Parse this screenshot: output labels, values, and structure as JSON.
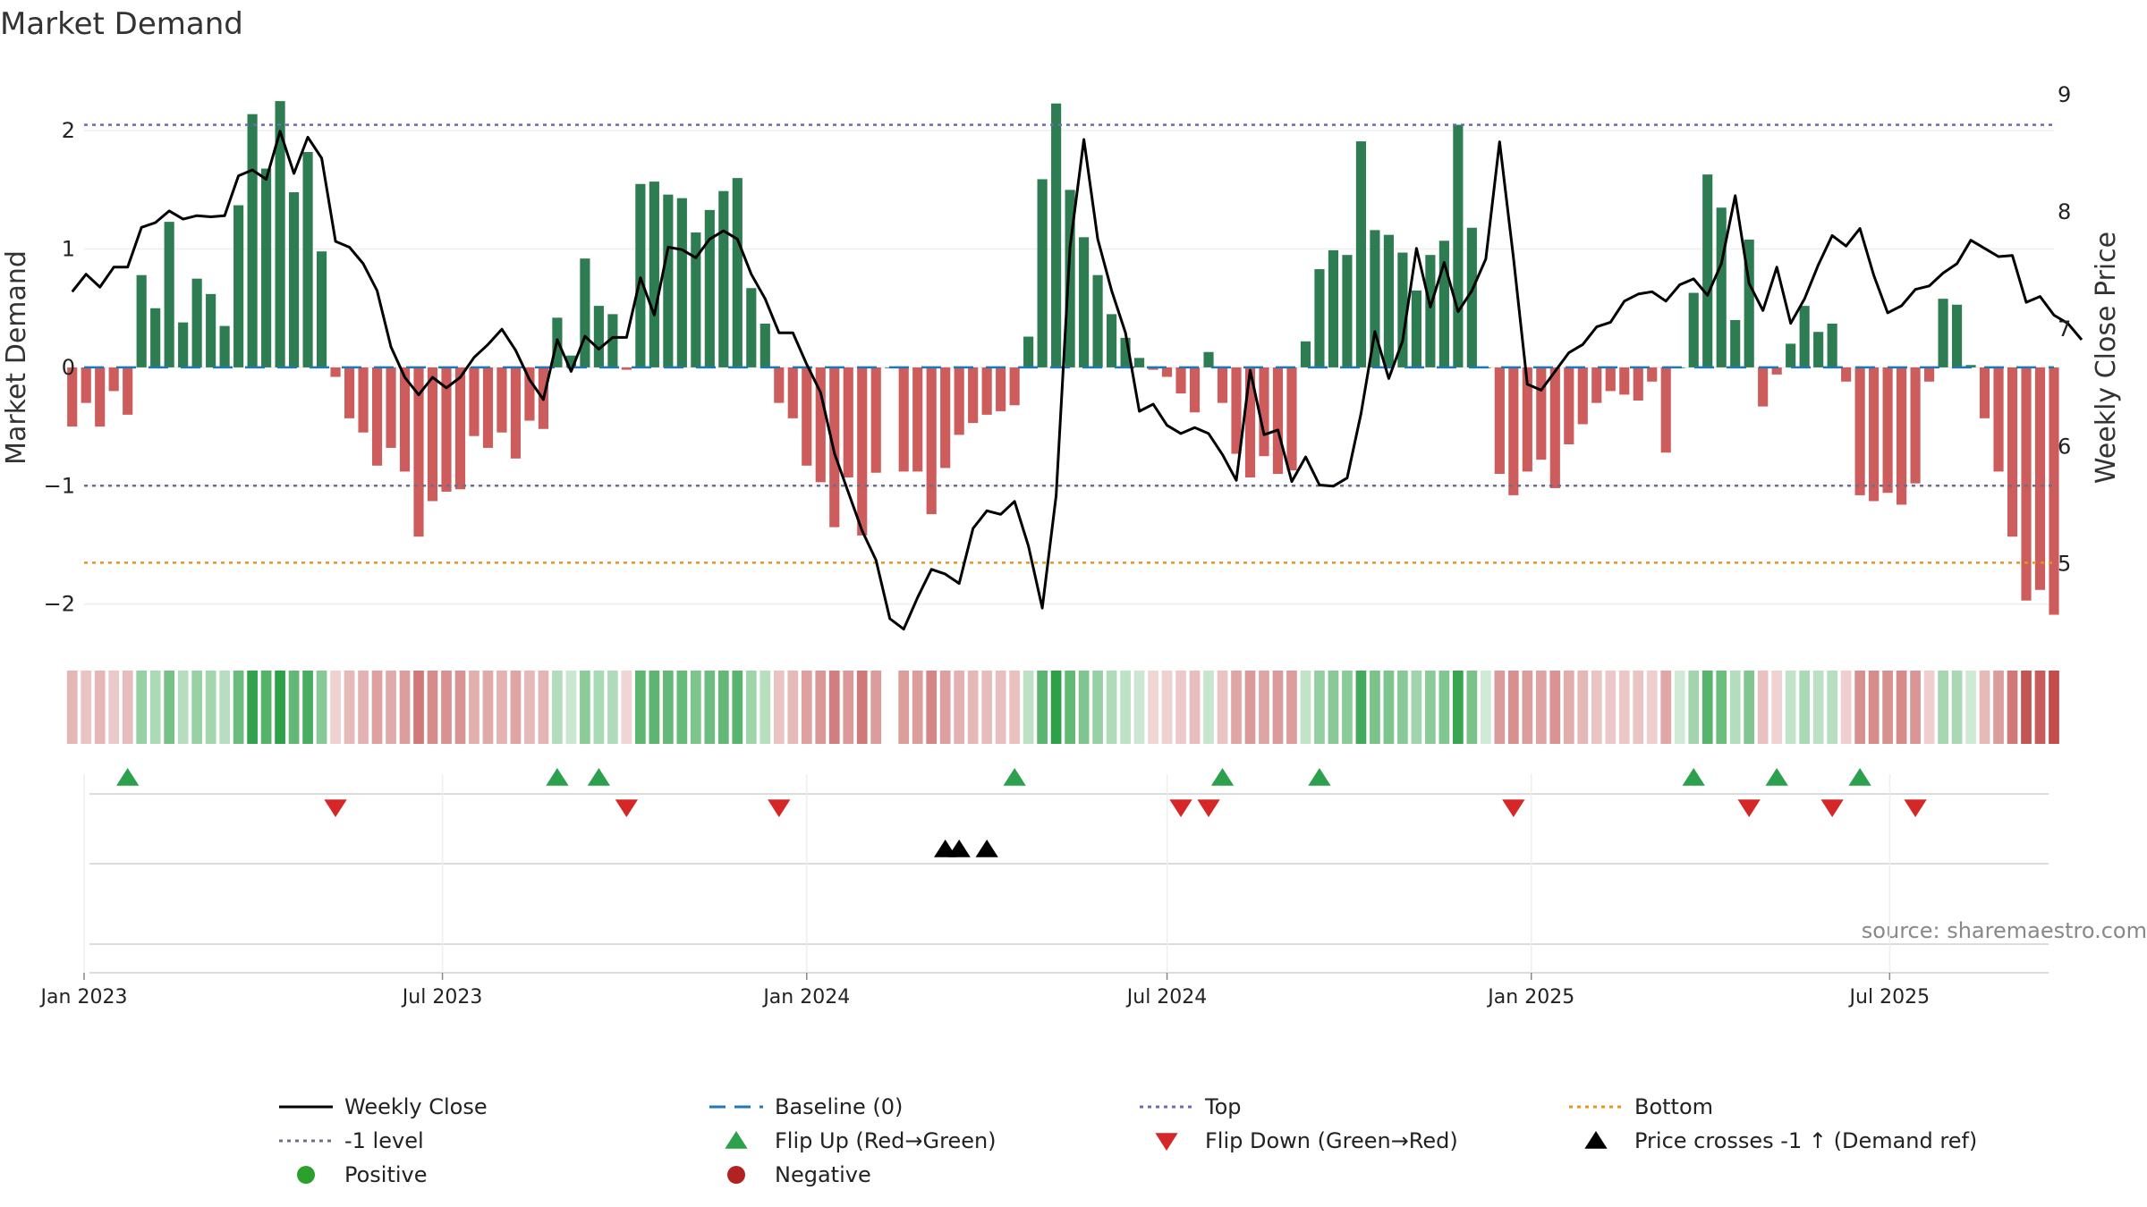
{
  "chart_data": {
    "type": "bar",
    "title": "Market Demand",
    "ylabel": "Market Demand",
    "y2label": "Weekly Close Price",
    "ylim": [
      -2.35,
      2.5
    ],
    "y2lim": [
      4.3,
      9.2
    ],
    "yticks": [
      2,
      1,
      0,
      -1,
      -2
    ],
    "yticks_labels": [
      "2",
      "1",
      "0",
      "−1",
      "−2"
    ],
    "y2ticks": [
      9,
      8,
      7,
      6,
      5
    ],
    "y2ticks_labels": [
      "9",
      "8",
      "7",
      "6",
      "5"
    ],
    "x_start": "2023-01-01",
    "x_end": "2025-09-22",
    "week_start": "2022-12-26",
    "date_ticks": [
      "2023-01-01",
      "2023-07-01",
      "2024-01-01",
      "2024-07-01",
      "2025-01-01",
      "2025-07-01"
    ],
    "date_tick_labels": [
      "Jan 2023",
      "Jul 2023",
      "Jan 2024",
      "Jul 2024",
      "Jan 2025",
      "Jul 2025"
    ],
    "levels": {
      "top": 2.05,
      "minus_one": -1.0,
      "bottom": -1.65,
      "baseline": 0
    },
    "demand": [
      -0.5,
      -0.3,
      -0.5,
      -0.2,
      -0.4,
      0.78,
      0.5,
      1.23,
      0.38,
      0.75,
      0.62,
      0.35,
      1.37,
      2.14,
      1.68,
      2.25,
      1.48,
      1.82,
      0.98,
      -0.08,
      -0.43,
      -0.55,
      -0.83,
      -0.68,
      -0.88,
      -1.43,
      -1.13,
      -1.05,
      -1.03,
      -0.58,
      -0.68,
      -0.55,
      -0.77,
      -0.45,
      -0.52,
      0.42,
      0.1,
      0.92,
      0.52,
      0.45,
      -0.02,
      1.55,
      1.57,
      1.46,
      1.43,
      1.14,
      1.33,
      1.49,
      1.6,
      0.67,
      0.37,
      -0.3,
      -0.43,
      -0.83,
      -0.97,
      -1.35,
      -0.93,
      -1.42,
      -0.89,
      0.0,
      -0.88,
      -0.88,
      -1.24,
      -0.85,
      -0.57,
      -0.47,
      -0.4,
      -0.37,
      -0.32,
      0.26,
      1.59,
      2.23,
      1.5,
      1.1,
      0.78,
      0.45,
      0.25,
      0.08,
      -0.02,
      -0.08,
      -0.22,
      -0.38,
      0.13,
      -0.3,
      -0.73,
      -0.93,
      -0.75,
      -0.9,
      -0.87,
      0.22,
      0.83,
      0.99,
      0.95,
      1.91,
      1.16,
      1.12,
      0.97,
      0.65,
      0.95,
      1.07,
      2.05,
      1.18,
      0.0,
      -0.9,
      -1.08,
      -0.88,
      -0.78,
      -1.02,
      -0.65,
      -0.48,
      -0.3,
      -0.2,
      -0.23,
      -0.28,
      -0.12,
      -0.72,
      0.0,
      0.63,
      1.63,
      1.35,
      0.4,
      1.08,
      -0.33,
      -0.06,
      0.2,
      0.52,
      0.3,
      0.37,
      -0.12,
      -1.08,
      -1.13,
      -1.06,
      -1.16,
      -0.98,
      -0.12,
      0.58,
      0.53,
      0.02,
      -0.43,
      -0.88,
      -1.43,
      -1.97,
      -1.88,
      -2.09
    ],
    "close": [
      7.32,
      7.47,
      7.36,
      7.53,
      7.53,
      7.87,
      7.91,
      8.01,
      7.94,
      7.97,
      7.96,
      7.97,
      8.31,
      8.36,
      8.28,
      8.69,
      8.33,
      8.64,
      8.46,
      7.75,
      7.7,
      7.56,
      7.33,
      6.85,
      6.59,
      6.44,
      6.59,
      6.5,
      6.59,
      6.76,
      6.87,
      7.0,
      6.82,
      6.57,
      6.4,
      6.91,
      6.64,
      6.94,
      6.83,
      6.93,
      6.93,
      7.44,
      7.12,
      7.7,
      7.68,
      7.61,
      7.77,
      7.84,
      7.77,
      7.47,
      7.26,
      6.97,
      6.97,
      6.7,
      6.46,
      5.94,
      5.61,
      5.28,
      5.03,
      4.53,
      4.44,
      4.71,
      4.95,
      4.91,
      4.83,
      5.3,
      5.45,
      5.42,
      5.53,
      5.15,
      4.62,
      5.58,
      7.7,
      8.62,
      7.77,
      7.33,
      6.97,
      6.3,
      6.36,
      6.18,
      6.11,
      6.16,
      6.11,
      5.93,
      5.71,
      6.65,
      6.1,
      6.14,
      5.7,
      5.91,
      5.67,
      5.66,
      5.73,
      6.28,
      6.98,
      6.58,
      6.9,
      7.69,
      7.19,
      7.57,
      7.15,
      7.33,
      7.6,
      8.6,
      7.61,
      6.53,
      6.48,
      6.64,
      6.8,
      6.87,
      7.02,
      7.06,
      7.24,
      7.3,
      7.32,
      7.24,
      7.38,
      7.43,
      7.29,
      7.56,
      8.14,
      7.39,
      7.16,
      7.53,
      7.05,
      7.26,
      7.55,
      7.8,
      7.71,
      7.86,
      7.46,
      7.14,
      7.2,
      7.34,
      7.37,
      7.48,
      7.56,
      7.76,
      7.69,
      7.62,
      7.63,
      7.23,
      7.28,
      7.12,
      7.05,
      6.91
    ],
    "flip_up_weeks": [
      4,
      35,
      38,
      68,
      83,
      90,
      117,
      123,
      129
    ],
    "flip_down_weeks": [
      19,
      40,
      51,
      80,
      82,
      104,
      121,
      127,
      133
    ],
    "cross_weeks": [
      63,
      64,
      66
    ],
    "heat_gap_week": 59,
    "legend": [
      {
        "label": "Weekly Close",
        "type": "line",
        "color": "#000000"
      },
      {
        "label": "Baseline (0)",
        "type": "dash",
        "color": "#1f77b4"
      },
      {
        "label": "Top",
        "type": "dot",
        "color": "#6b6bb5"
      },
      {
        "label": "Bottom",
        "type": "dot",
        "color": "#e69422"
      },
      {
        "label": "-1 level",
        "type": "dot",
        "color": "#6e6e88"
      },
      {
        "label": "Flip Up (Red→Green)",
        "type": "tri-up",
        "color": "#2ca04c"
      },
      {
        "label": "Flip Down (Green→Red)",
        "type": "tri-down",
        "color": "#d62728"
      },
      {
        "label": "Price crosses -1 ↑ (Demand ref)",
        "type": "tri-up",
        "color": "#000000"
      },
      {
        "label": "Positive",
        "type": "circle",
        "color": "#2ca02c"
      },
      {
        "label": "Negative",
        "type": "circle",
        "color": "#b22222"
      }
    ],
    "source": "source: sharemaestro.com"
  },
  "colors": {
    "positive_bar": "#2e7d52",
    "negative_bar": "#cd5c5c",
    "close_line": "#000000",
    "baseline": "#1f77b4",
    "top_line": "#6b6bb5",
    "minus_one_line": "#6e6e88",
    "bottom_line": "#e69422",
    "flip_up": "#2ca04c",
    "flip_down": "#d62728",
    "cross": "#000000"
  }
}
